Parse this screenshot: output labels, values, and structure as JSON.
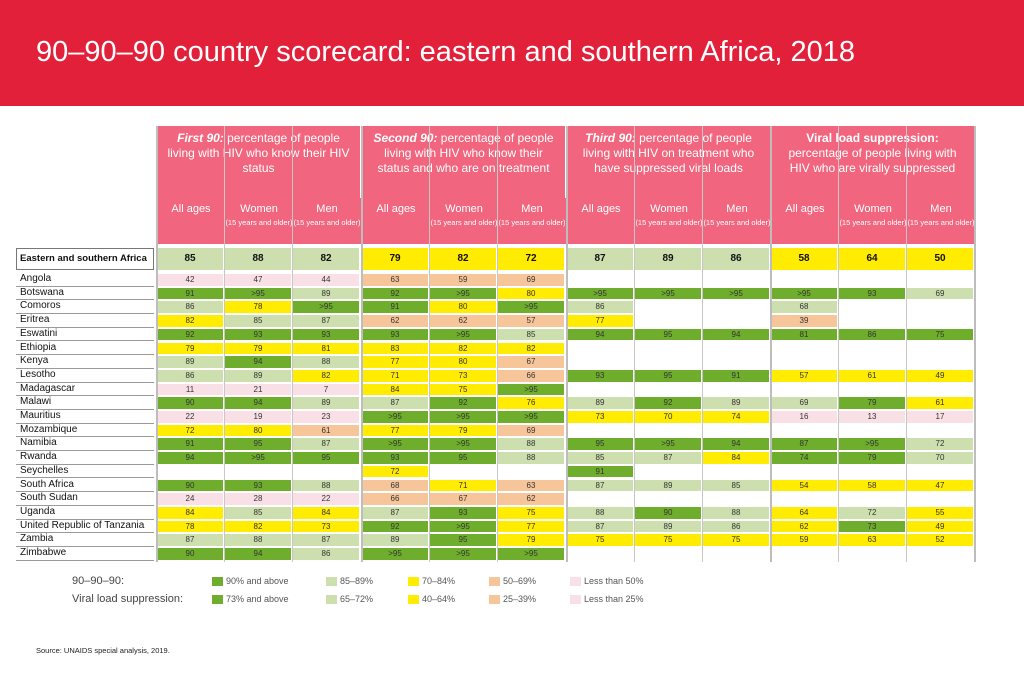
{
  "title": "90–90–90 country scorecard: eastern and southern Africa, 2018",
  "colors": {
    "banner": "#e2203a",
    "header": "#f1667e",
    "dark_green": "#6fae2c",
    "light_green": "#cddfae",
    "yellow": "#ffec00",
    "light_yellow": "#fff1a8",
    "orange": "#f7c59a",
    "pink": "#f9e0e6",
    "blank": "#ffffff"
  },
  "headers": {
    "groups": [
      {
        "lead": "First 90:",
        "rest": " percentage of people living with HIV who know their HIV status"
      },
      {
        "lead": "Second 90:",
        "rest": "  percentage of people living with HIV who know their status and who are on treatment"
      },
      {
        "lead": "Third 90:",
        "rest": " percentage of people living with HIV on treatment who have suppressed viral loads"
      },
      {
        "lead": "Viral load suppression:",
        "rest": "percentage of people living with HIV who are virally suppressed"
      }
    ],
    "sub": {
      "all": "All ages",
      "women": "Women",
      "men": "Men",
      "age_note": "(15 years and older)"
    }
  },
  "chart_data": {
    "type": "table",
    "title": "90–90–90 country scorecard: eastern and southern Africa, 2018",
    "columns": [
      "First 90 – All ages",
      "First 90 – Women",
      "First 90 – Men",
      "Second 90 – All ages",
      "Second 90 – Women",
      "Second 90 – Men",
      "Third 90 – All ages",
      "Third 90 – Women",
      "Third 90 – Men",
      "Viral load suppression – All ages",
      "Viral load suppression – Women",
      "Viral load suppression – Men"
    ],
    "summary": {
      "label": "Eastern and southern Africa",
      "values": [
        "85",
        "88",
        "82",
        "79",
        "82",
        "72",
        "87",
        "89",
        "86",
        "58",
        "64",
        "50"
      ],
      "colors": [
        "lg",
        "lg",
        "lg",
        "y",
        "y",
        "y",
        "lg",
        "lg",
        "lg",
        "y",
        "y",
        "y"
      ]
    },
    "rows": [
      {
        "label": "Angola",
        "values": [
          "42",
          "47",
          "44",
          "63",
          "59",
          "69",
          "",
          "",
          "",
          "",
          "",
          ""
        ],
        "colors": [
          "p",
          "p",
          "p",
          "o",
          "o",
          "o",
          "w",
          "w",
          "w",
          "w",
          "w",
          "w"
        ]
      },
      {
        "label": "Botswana",
        "values": [
          "91",
          ">95",
          "89",
          "92",
          ">95",
          "80",
          ">95",
          ">95",
          ">95",
          ">95",
          "93",
          "69"
        ],
        "colors": [
          "dg",
          "dg",
          "lg",
          "dg",
          "dg",
          "y",
          "dg",
          "dg",
          "dg",
          "dg",
          "dg",
          "lg"
        ]
      },
      {
        "label": "Comoros",
        "values": [
          "86",
          "78",
          ">95",
          "91",
          "80",
          ">95",
          "86",
          "",
          "",
          "68",
          "",
          ""
        ],
        "colors": [
          "lg",
          "y",
          "dg",
          "dg",
          "y",
          "dg",
          "lg",
          "w",
          "w",
          "lg",
          "w",
          "w"
        ]
      },
      {
        "label": "Eritrea",
        "values": [
          "82",
          "85",
          "87",
          "62",
          "62",
          "57",
          "77",
          "",
          "",
          "39",
          "",
          ""
        ],
        "colors": [
          "y",
          "lg",
          "lg",
          "o",
          "o",
          "o",
          "y",
          "w",
          "w",
          "o",
          "w",
          "w"
        ]
      },
      {
        "label": "Eswatini",
        "values": [
          "92",
          "93",
          "93",
          "93",
          ">95",
          "85",
          "94",
          "95",
          "94",
          "81",
          "86",
          "75"
        ],
        "colors": [
          "dg",
          "dg",
          "dg",
          "dg",
          "dg",
          "lg",
          "dg",
          "dg",
          "dg",
          "dg",
          "dg",
          "dg"
        ]
      },
      {
        "label": "Ethiopia",
        "values": [
          "79",
          "79",
          "81",
          "83",
          "82",
          "82",
          "",
          "",
          "",
          "",
          "",
          ""
        ],
        "colors": [
          "y",
          "y",
          "y",
          "y",
          "y",
          "y",
          "w",
          "w",
          "w",
          "w",
          "w",
          "w"
        ]
      },
      {
        "label": "Kenya",
        "values": [
          "89",
          "94",
          "88",
          "77",
          "80",
          "67",
          "",
          "",
          "",
          "",
          "",
          ""
        ],
        "colors": [
          "lg",
          "dg",
          "lg",
          "y",
          "y",
          "o",
          "w",
          "w",
          "w",
          "w",
          "w",
          "w"
        ]
      },
      {
        "label": "Lesotho",
        "values": [
          "86",
          "89",
          "82",
          "71",
          "73",
          "66",
          "93",
          "95",
          "91",
          "57",
          "61",
          "49"
        ],
        "colors": [
          "lg",
          "lg",
          "y",
          "y",
          "y",
          "o",
          "dg",
          "dg",
          "dg",
          "y",
          "y",
          "y"
        ]
      },
      {
        "label": "Madagascar",
        "values": [
          "11",
          "21",
          "7",
          "84",
          "75",
          ">95",
          "",
          "",
          "",
          "",
          "",
          ""
        ],
        "colors": [
          "p",
          "p",
          "p",
          "y",
          "y",
          "dg",
          "w",
          "w",
          "w",
          "w",
          "w",
          "w"
        ]
      },
      {
        "label": "Malawi",
        "values": [
          "90",
          "94",
          "89",
          "87",
          "92",
          "76",
          "89",
          "92",
          "89",
          "69",
          "79",
          "61"
        ],
        "colors": [
          "dg",
          "dg",
          "lg",
          "lg",
          "dg",
          "y",
          "lg",
          "dg",
          "lg",
          "lg",
          "dg",
          "y"
        ]
      },
      {
        "label": "Mauritius",
        "values": [
          "22",
          "19",
          "23",
          ">95",
          ">95",
          ">95",
          "73",
          "70",
          "74",
          "16",
          "13",
          "17"
        ],
        "colors": [
          "p",
          "p",
          "p",
          "dg",
          "dg",
          "dg",
          "y",
          "y",
          "y",
          "p",
          "p",
          "p"
        ]
      },
      {
        "label": "Mozambique",
        "values": [
          "72",
          "80",
          "61",
          "77",
          "79",
          "69",
          "",
          "",
          "",
          "",
          "",
          ""
        ],
        "colors": [
          "y",
          "y",
          "o",
          "y",
          "y",
          "o",
          "w",
          "w",
          "w",
          "w",
          "w",
          "w"
        ]
      },
      {
        "label": "Namibia",
        "values": [
          "91",
          "95",
          "87",
          ">95",
          ">95",
          "88",
          "95",
          ">95",
          "94",
          "87",
          ">95",
          "72"
        ],
        "colors": [
          "dg",
          "dg",
          "lg",
          "dg",
          "dg",
          "lg",
          "dg",
          "dg",
          "dg",
          "dg",
          "dg",
          "lg"
        ]
      },
      {
        "label": "Rwanda",
        "values": [
          "94",
          ">95",
          "95",
          "93",
          "95",
          "88",
          "85",
          "87",
          "84",
          "74",
          "79",
          "70"
        ],
        "colors": [
          "dg",
          "dg",
          "dg",
          "dg",
          "dg",
          "lg",
          "lg",
          "lg",
          "y",
          "dg",
          "dg",
          "lg"
        ]
      },
      {
        "label": "Seychelles",
        "values": [
          "",
          "",
          "",
          "72",
          "",
          "",
          "91",
          "",
          "",
          "",
          "",
          ""
        ],
        "colors": [
          "w",
          "w",
          "w",
          "y",
          "w",
          "w",
          "dg",
          "w",
          "w",
          "w",
          "w",
          "w"
        ]
      },
      {
        "label": "South Africa",
        "values": [
          "90",
          "93",
          "88",
          "68",
          "71",
          "63",
          "87",
          "89",
          "85",
          "54",
          "58",
          "47"
        ],
        "colors": [
          "dg",
          "dg",
          "lg",
          "o",
          "y",
          "o",
          "lg",
          "lg",
          "lg",
          "y",
          "y",
          "y"
        ]
      },
      {
        "label": "South Sudan",
        "values": [
          "24",
          "28",
          "22",
          "66",
          "67",
          "62",
          "",
          "",
          "",
          "",
          "",
          ""
        ],
        "colors": [
          "p",
          "p",
          "p",
          "o",
          "o",
          "o",
          "w",
          "w",
          "w",
          "w",
          "w",
          "w"
        ]
      },
      {
        "label": "Uganda",
        "values": [
          "84",
          "85",
          "84",
          "87",
          "93",
          "75",
          "88",
          "90",
          "88",
          "64",
          "72",
          "55"
        ],
        "colors": [
          "y",
          "lg",
          "y",
          "lg",
          "dg",
          "y",
          "lg",
          "dg",
          "lg",
          "y",
          "lg",
          "y"
        ]
      },
      {
        "label": "United Republic of Tanzania",
        "values": [
          "78",
          "82",
          "73",
          "92",
          ">95",
          "77",
          "87",
          "89",
          "86",
          "62",
          "73",
          "49"
        ],
        "colors": [
          "y",
          "y",
          "y",
          "dg",
          "dg",
          "y",
          "lg",
          "lg",
          "lg",
          "y",
          "dg",
          "y"
        ]
      },
      {
        "label": "Zambia",
        "values": [
          "87",
          "88",
          "87",
          "89",
          "95",
          "79",
          "75",
          "75",
          "75",
          "59",
          "63",
          "52"
        ],
        "colors": [
          "lg",
          "lg",
          "lg",
          "lg",
          "dg",
          "y",
          "y",
          "y",
          "y",
          "y",
          "y",
          "y"
        ]
      },
      {
        "label": "Zimbabwe",
        "values": [
          "90",
          "94",
          "86",
          ">95",
          ">95",
          ">95",
          "",
          "",
          "",
          "",
          "",
          ""
        ],
        "colors": [
          "dg",
          "dg",
          "lg",
          "dg",
          "dg",
          "dg",
          "w",
          "w",
          "w",
          "w",
          "w",
          "w"
        ]
      }
    ],
    "legend": {
      "label_909090": "90–90–90:",
      "label_vls": "Viral load suppression:",
      "row1": [
        {
          "color": "dg",
          "text": "90% and above"
        },
        {
          "color": "lg",
          "text": "85–89%"
        },
        {
          "color": "y",
          "text": "70–84%"
        },
        {
          "color": "o",
          "text": "50–69%"
        },
        {
          "color": "p",
          "text": "Less than 50%"
        }
      ],
      "row2": [
        {
          "color": "dg",
          "text": "73% and above"
        },
        {
          "color": "lg",
          "text": "65–72%"
        },
        {
          "color": "y",
          "text": "40–64%"
        },
        {
          "color": "o",
          "text": "25–39%"
        },
        {
          "color": "p",
          "text": "Less than 25%"
        }
      ]
    }
  },
  "source": "Source: UNAIDS special analysis, 2019."
}
